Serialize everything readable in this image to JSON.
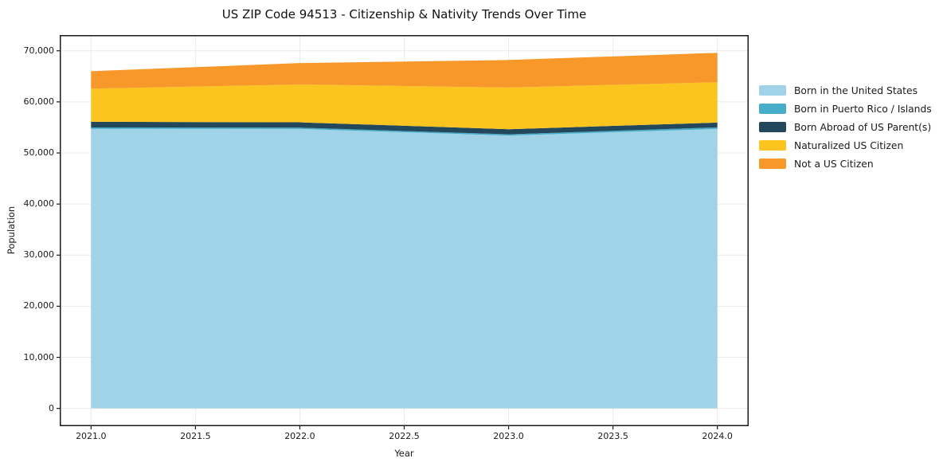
{
  "chart_data": {
    "type": "area",
    "stacked": true,
    "title": "US ZIP Code 94513 - Citizenship & Nativity Trends Over Time",
    "xlabel": "Year",
    "ylabel": "Population",
    "x": [
      2021,
      2022,
      2023,
      2024
    ],
    "series": [
      {
        "name": "Born in the United States",
        "color": "#a0d3e8",
        "values": [
          54700,
          54700,
          53400,
          54700
        ]
      },
      {
        "name": "Born in Puerto Rico / Islands",
        "color": "#47adc9",
        "values": [
          300,
          250,
          250,
          300
        ]
      },
      {
        "name": "Born Abroad of US Parent(s)",
        "color": "#23485c",
        "values": [
          1100,
          1050,
          1000,
          950
        ]
      },
      {
        "name": "Naturalized US Citizen",
        "color": "#fcc41f",
        "values": [
          6500,
          7400,
          8150,
          7900
        ]
      },
      {
        "name": "Not a US Citizen",
        "color": "#f8982a",
        "values": [
          3400,
          4200,
          5400,
          5750
        ]
      }
    ],
    "xlim": [
      2020.85,
      2024.15
    ],
    "ylim": [
      -3480,
      73080
    ],
    "x_ticks": [
      2021.0,
      2021.5,
      2022.0,
      2022.5,
      2023.0,
      2023.5,
      2024.0
    ],
    "x_tick_labels": [
      "2021.0",
      "2021.5",
      "2022.0",
      "2022.5",
      "2023.0",
      "2023.5",
      "2024.0"
    ],
    "y_ticks": [
      0,
      10000,
      20000,
      30000,
      40000,
      50000,
      60000,
      70000
    ],
    "y_tick_labels": [
      "0",
      "10,000",
      "20,000",
      "30,000",
      "40,000",
      "50,000",
      "60,000",
      "70,000"
    ],
    "grid": true,
    "legend_position": "outside upper right",
    "colors": {
      "grid": "#ebebeb",
      "axis_border": "#1a1a1a",
      "background": "#ffffff"
    }
  }
}
